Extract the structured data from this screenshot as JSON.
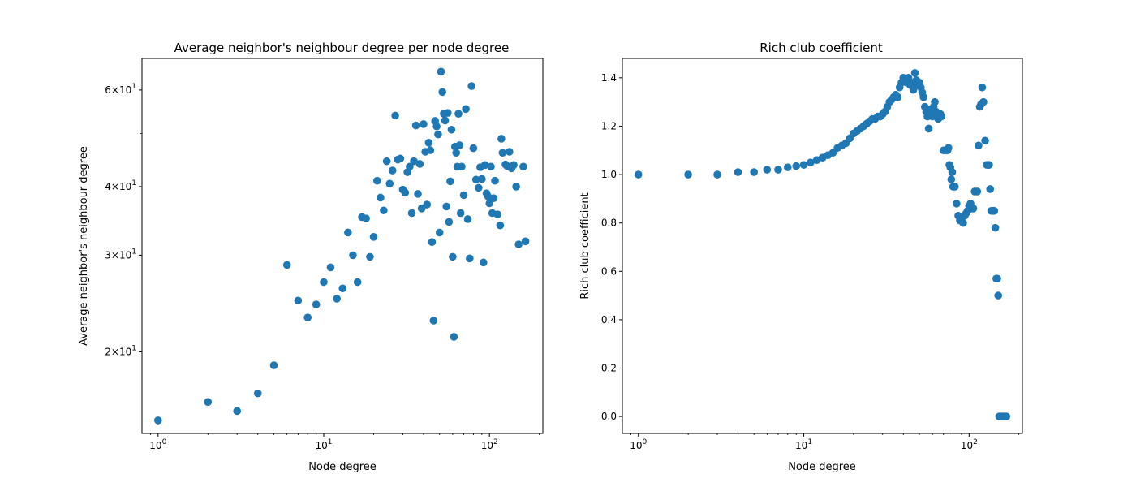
{
  "chart_data": [
    {
      "type": "scatter",
      "title": "Average neighbor's neighbour degree per node degree",
      "xlabel": "Node degree",
      "ylabel": "Average neighbor's neighbour degree",
      "xscale": "log",
      "yscale": "log",
      "xlim": [
        0.8,
        210
      ],
      "ylim": [
        14.2,
        68.5
      ],
      "xticks": [
        {
          "value": 1,
          "label": "10^0"
        },
        {
          "value": 10,
          "label": "10^1"
        },
        {
          "value": 100,
          "label": "10^2"
        }
      ],
      "yticks": [
        {
          "value": 20,
          "label": "2×10^1"
        },
        {
          "value": 30,
          "label": "3×10^1"
        },
        {
          "value": 40,
          "label": "4×10^1"
        },
        {
          "value": 60,
          "label": "6×10^1"
        }
      ],
      "color": "#1f77b4",
      "grid": false,
      "series": [
        {
          "x": [
            1,
            2,
            3,
            4,
            5,
            6,
            7,
            8,
            9,
            10,
            11,
            12,
            13,
            14,
            15,
            16,
            17,
            18,
            19,
            20,
            21,
            22,
            23,
            24,
            25,
            26,
            27,
            28,
            29,
            30,
            31,
            32,
            33,
            34,
            35,
            36,
            37,
            38,
            39,
            40,
            41,
            42,
            43,
            44,
            45,
            46,
            47,
            48,
            49,
            50,
            51,
            52,
            53,
            54,
            55,
            56,
            57,
            58,
            59,
            60,
            61,
            62,
            63,
            64,
            65,
            66,
            67,
            68,
            70,
            72,
            74,
            76,
            78,
            80,
            83,
            86,
            88,
            90,
            92,
            94,
            96,
            98,
            100,
            102,
            104,
            106,
            108,
            112,
            116,
            118,
            120,
            125,
            128,
            132,
            136,
            140,
            145,
            150,
            160,
            165
          ],
          "y": [
            15.0,
            16.2,
            15.6,
            16.8,
            18.9,
            28.8,
            24.8,
            23.1,
            24.4,
            26.8,
            28.5,
            25.0,
            26.1,
            33.0,
            30.0,
            26.8,
            35.2,
            35.0,
            29.8,
            32.4,
            41.0,
            38.2,
            36.2,
            44.5,
            40.5,
            42.8,
            53.9,
            44.8,
            45.0,
            39.5,
            39.0,
            42.5,
            43.5,
            35.8,
            44.5,
            51.7,
            38.8,
            44.0,
            36.5,
            52.0,
            46.3,
            37.1,
            48.1,
            46.6,
            31.7,
            22.8,
            52.7,
            51.5,
            49.8,
            33.0,
            64.8,
            59.5,
            54.3,
            52.8,
            36.8,
            54.5,
            34.5,
            40.9,
            50.8,
            29.8,
            21.3,
            47.3,
            46.1,
            43.5,
            54.3,
            47.6,
            35.8,
            43.5,
            38.6,
            55.4,
            34.9,
            29.6,
            61.0,
            47.0,
            41.2,
            39.8,
            43.4,
            41.3,
            29.1,
            43.8,
            38.9,
            38.4,
            37.3,
            43.5,
            35.8,
            38.1,
            41.0,
            35.6,
            34.0,
            48.9,
            46.1,
            43.9,
            43.6,
            46.3,
            43.2,
            43.8,
            40.0,
            31.4,
            43.5,
            31.8
          ]
        }
      ]
    },
    {
      "type": "scatter",
      "title": "Rich club coefficient",
      "xlabel": "Node degree",
      "ylabel": "Rich club coefficient",
      "xscale": "log",
      "yscale": "linear",
      "xlim": [
        0.8,
        210
      ],
      "ylim": [
        -0.07,
        1.48
      ],
      "xticks": [
        {
          "value": 1,
          "label": "10^0"
        },
        {
          "value": 10,
          "label": "10^1"
        },
        {
          "value": 100,
          "label": "10^2"
        }
      ],
      "yticks": [
        {
          "value": 0.0,
          "label": "0.0"
        },
        {
          "value": 0.2,
          "label": "0.2"
        },
        {
          "value": 0.4,
          "label": "0.4"
        },
        {
          "value": 0.6,
          "label": "0.6"
        },
        {
          "value": 0.8,
          "label": "0.8"
        },
        {
          "value": 1.0,
          "label": "1.0"
        },
        {
          "value": 1.2,
          "label": "1.2"
        },
        {
          "value": 1.4,
          "label": "1.4"
        }
      ],
      "color": "#1f77b4",
      "grid": false,
      "series": [
        {
          "x": [
            1,
            2,
            3,
            4,
            5,
            6,
            7,
            8,
            9,
            10,
            11,
            12,
            13,
            14,
            15,
            16,
            17,
            18,
            19,
            20,
            21,
            22,
            23,
            24,
            25,
            26,
            27,
            28,
            29,
            30,
            31,
            32,
            33,
            34,
            35,
            36,
            37,
            38,
            39,
            40,
            41,
            42,
            43,
            44,
            45,
            46,
            47,
            48,
            49,
            50,
            51,
            52,
            53,
            54,
            55,
            56,
            57,
            58,
            59,
            60,
            61,
            62,
            63,
            64,
            65,
            66,
            67,
            68,
            70,
            72,
            74,
            75,
            76,
            77,
            78,
            79,
            80,
            81,
            82,
            84,
            86,
            88,
            90,
            92,
            94,
            96,
            98,
            100,
            102,
            104,
            106,
            108,
            112,
            114,
            116,
            118,
            120,
            122,
            125,
            128,
            130,
            132,
            134,
            136,
            138,
            140,
            142,
            144,
            146,
            148,
            150,
            152,
            155,
            158,
            160,
            162,
            165,
            168
          ],
          "y": [
            1.0,
            1.0,
            1.0,
            1.01,
            1.01,
            1.02,
            1.02,
            1.03,
            1.035,
            1.04,
            1.05,
            1.06,
            1.07,
            1.08,
            1.09,
            1.11,
            1.12,
            1.13,
            1.15,
            1.17,
            1.18,
            1.19,
            1.2,
            1.21,
            1.22,
            1.23,
            1.23,
            1.24,
            1.24,
            1.25,
            1.26,
            1.28,
            1.3,
            1.31,
            1.32,
            1.33,
            1.32,
            1.36,
            1.38,
            1.4,
            1.39,
            1.38,
            1.4,
            1.37,
            1.38,
            1.35,
            1.42,
            1.39,
            1.37,
            1.38,
            1.36,
            1.34,
            1.32,
            1.28,
            1.26,
            1.24,
            1.19,
            1.25,
            1.27,
            1.24,
            1.28,
            1.3,
            1.26,
            1.25,
            1.23,
            1.24,
            1.25,
            1.24,
            1.1,
            1.1,
            1.1,
            1.11,
            1.04,
            1.03,
            0.98,
            1.01,
            0.95,
            0.95,
            0.95,
            0.88,
            0.83,
            0.81,
            0.81,
            0.8,
            0.83,
            0.84,
            0.85,
            0.87,
            0.88,
            0.86,
            0.86,
            0.93,
            0.93,
            1.12,
            1.28,
            1.29,
            1.36,
            1.3,
            1.14,
            1.04,
            1.04,
            1.04,
            0.94,
            0.85,
            0.85,
            0.85,
            0.85,
            0.78,
            0.57,
            0.57,
            0.5,
            0.0,
            0.0,
            0.0,
            0.0,
            0.0,
            0.0,
            0.0
          ]
        }
      ]
    }
  ]
}
